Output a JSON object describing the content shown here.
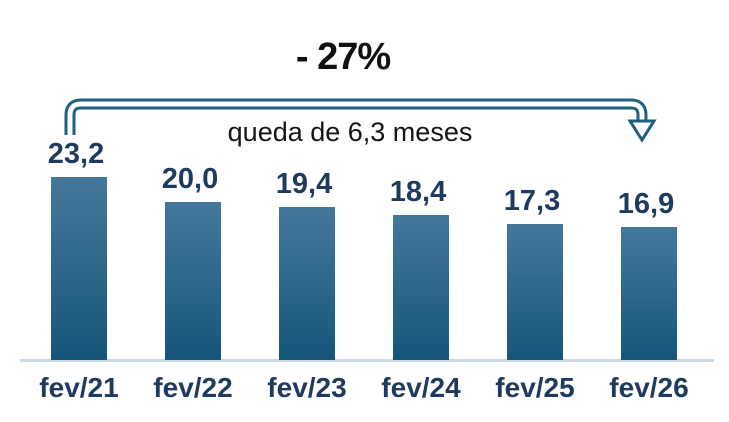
{
  "title": "- 27%",
  "annotation": "queda de 6,3 meses",
  "colors": {
    "bar_top": "#45789a",
    "bar_bottom": "#16567a",
    "label": "#1e3a5e",
    "arrow": "#1f5f80",
    "axis": "#cfd9e2",
    "title": "#111111"
  },
  "chart_data": {
    "type": "bar",
    "categories": [
      "fev/21",
      "fev/22",
      "fev/23",
      "fev/24",
      "fev/25",
      "fev/26"
    ],
    "values": [
      23.2,
      20.0,
      19.4,
      18.4,
      17.3,
      16.9
    ],
    "value_labels": [
      "23,2",
      "20,0",
      "19,4",
      "18,4",
      "17,3",
      "16,9"
    ],
    "title": "- 27%",
    "annotation": "queda de 6,3 meses",
    "xlabel": "",
    "ylabel": "",
    "ylim": [
      0,
      24
    ],
    "grid": false,
    "legend": false,
    "annotation_arrow": "from first bar (fev/21) to last bar (fev/26), pointing down"
  }
}
